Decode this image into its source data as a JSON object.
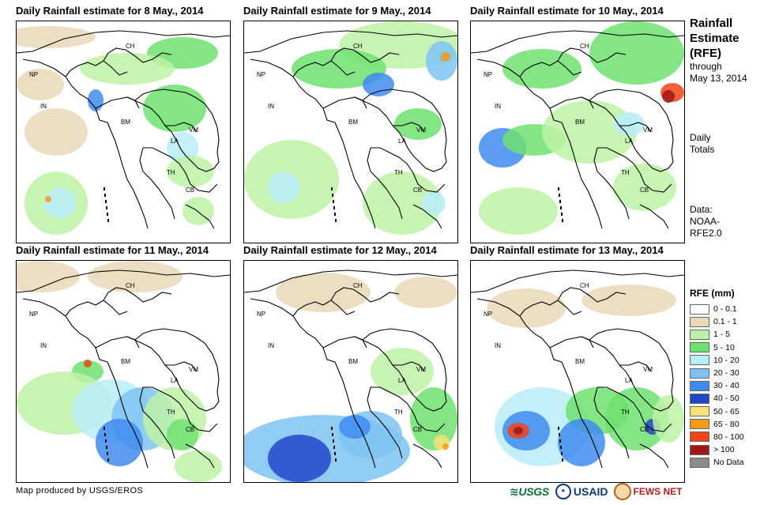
{
  "panels": [
    {
      "title": "Daily Rainfall estimate for 8 May., 2014"
    },
    {
      "title": "Daily Rainfall estimate for 9 May., 2014"
    },
    {
      "title": "Daily Rainfall estimate for 10 May., 2014"
    },
    {
      "title": "Daily Rainfall estimate for 11 May., 2014"
    },
    {
      "title": "Daily Rainfall estimate for 12 May., 2014"
    },
    {
      "title": "Daily Rainfall estimate for 13 May., 2014"
    }
  ],
  "country_labels": {
    "ch": "CH",
    "np": "NP",
    "in": "IN",
    "bm": "BM",
    "la": "LA",
    "vm": "VM",
    "th": "TH",
    "cb": "CB"
  },
  "side": {
    "title_line1": "Rainfall",
    "title_line2": "Estimate",
    "title_line3": "(RFE)",
    "through": "through",
    "date": "May 13, 2014",
    "daily": "Daily",
    "totals": "Totals",
    "data_label": "Data:",
    "data_src1": "NOAA-",
    "data_src2": "RFE2.0"
  },
  "legend": {
    "title": "RFE (mm)",
    "items": [
      {
        "label": "0 - 0.1",
        "color": "#ffffff"
      },
      {
        "label": "0.1 - 1",
        "color": "#e8d8b8"
      },
      {
        "label": "1 - 5",
        "color": "#bdf2a6"
      },
      {
        "label": "5 - 10",
        "color": "#6ee06e"
      },
      {
        "label": "10 - 20",
        "color": "#b8ecf8"
      },
      {
        "label": "20 - 30",
        "color": "#7ec3f3"
      },
      {
        "label": "30 - 40",
        "color": "#3f8cf0"
      },
      {
        "label": "40 - 50",
        "color": "#2346c8"
      },
      {
        "label": "50 - 65",
        "color": "#f8e07a"
      },
      {
        "label": "65 - 80",
        "color": "#f59a18"
      },
      {
        "label": "80 - 100",
        "color": "#ee4418"
      },
      {
        "label": "> 100",
        "color": "#a01818"
      },
      {
        "label": "No Data",
        "color": "#8c8c8c"
      }
    ]
  },
  "footer": {
    "credit": "Map produced by USGS/EROS"
  },
  "logos": {
    "usgs": "≋USGS",
    "usaid": "USAID",
    "fews": "FEWS NET"
  }
}
